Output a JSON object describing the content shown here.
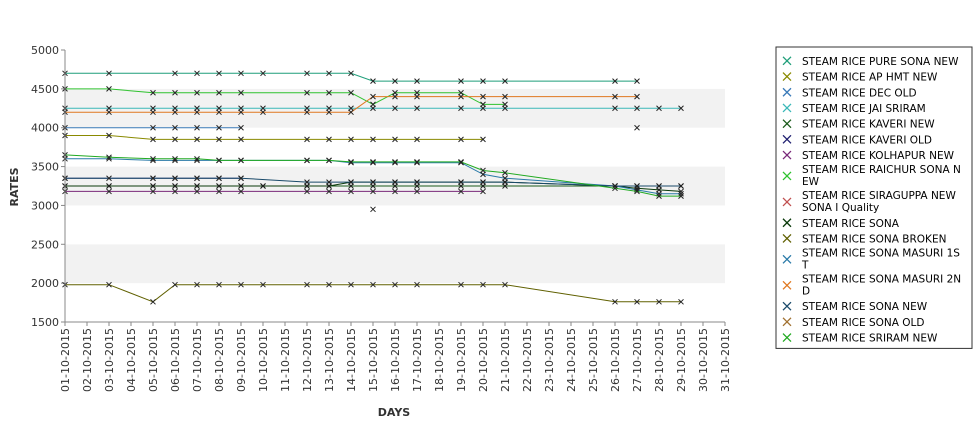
{
  "chart_data": {
    "type": "line",
    "xlabel": "DAYS",
    "ylabel": "RATES",
    "ylim": [
      1500,
      5000
    ],
    "yticks": [
      "1500",
      "2000",
      "2500",
      "3000",
      "3500",
      "4000",
      "4500",
      "5000"
    ],
    "categories": [
      "01-10-2015",
      "02-10-2015",
      "03-10-2015",
      "04-10-2015",
      "05-10-2015",
      "06-10-2015",
      "07-10-2015",
      "08-10-2015",
      "09-10-2015",
      "10-10-2015",
      "11-10-2015",
      "12-10-2015",
      "13-10-2015",
      "14-10-2015",
      "15-10-2015",
      "16-10-2015",
      "17-10-2015",
      "18-10-2015",
      "19-10-2015",
      "20-10-2015",
      "21-10-2015",
      "22-10-2015",
      "23-10-2015",
      "24-10-2015",
      "25-10-2015",
      "26-10-2015",
      "27-10-2015",
      "28-10-2015",
      "29-10-2015",
      "30-10-2015",
      "31-10-2015"
    ],
    "grid": "alternating horizontal bands",
    "legend_position": "right",
    "series": [
      {
        "name": " STEAM RICE PURE SONA NEW",
        "color": "#1f9e7a",
        "points": [
          [
            0,
            4700
          ],
          [
            2,
            4700
          ],
          [
            5,
            4700
          ],
          [
            6,
            4700
          ],
          [
            7,
            4700
          ],
          [
            8,
            4700
          ],
          [
            9,
            4700
          ],
          [
            11,
            4700
          ],
          [
            12,
            4700
          ],
          [
            13,
            4700
          ],
          [
            14,
            4600
          ],
          [
            15,
            4600
          ],
          [
            16,
            4600
          ],
          [
            18,
            4600
          ],
          [
            19,
            4600
          ],
          [
            20,
            4600
          ],
          [
            25,
            4600
          ],
          [
            26,
            4600
          ]
        ]
      },
      {
        "name": "STEAM RICE AP HMT NEW",
        "color": "#8a8a00",
        "points": [
          [
            0,
            3900
          ],
          [
            2,
            3900
          ],
          [
            4,
            3850
          ],
          [
            5,
            3850
          ],
          [
            6,
            3850
          ],
          [
            7,
            3850
          ],
          [
            8,
            3850
          ],
          [
            11,
            3850
          ],
          [
            12,
            3850
          ],
          [
            13,
            3850
          ],
          [
            14,
            3850
          ],
          [
            15,
            3850
          ],
          [
            16,
            3850
          ],
          [
            18,
            3850
          ],
          [
            19,
            3850
          ]
        ]
      },
      {
        "name": "STEAM RICE DEC OLD",
        "color": "#3a7ab8",
        "points": [
          [
            0,
            4000
          ],
          [
            4,
            4000
          ],
          [
            5,
            4000
          ],
          [
            6,
            4000
          ],
          [
            7,
            4000
          ],
          [
            8,
            4000
          ]
        ]
      },
      {
        "name": "STEAM RICE JAI SRIRAM",
        "color": "#3ab8b8",
        "points": [
          [
            0,
            4250
          ],
          [
            2,
            4250
          ],
          [
            4,
            4250
          ],
          [
            5,
            4250
          ],
          [
            6,
            4250
          ],
          [
            7,
            4250
          ],
          [
            8,
            4250
          ],
          [
            9,
            4250
          ],
          [
            11,
            4250
          ],
          [
            12,
            4250
          ],
          [
            13,
            4250
          ],
          [
            14,
            4250
          ],
          [
            15,
            4250
          ],
          [
            16,
            4250
          ],
          [
            18,
            4250
          ],
          [
            19,
            4250
          ],
          [
            20,
            4250
          ],
          [
            25,
            4250
          ],
          [
            26,
            4250
          ],
          [
            27,
            4250
          ],
          [
            28,
            4250
          ]
        ]
      },
      {
        "name": "STEAM RICE KAVERI NEW",
        "color": "#1a5a1a",
        "points": [
          [
            0,
            3250
          ],
          [
            2,
            3250
          ],
          [
            4,
            3250
          ],
          [
            5,
            3250
          ],
          [
            6,
            3250
          ],
          [
            7,
            3250
          ],
          [
            8,
            3250
          ],
          [
            9,
            3250
          ],
          [
            11,
            3250
          ],
          [
            12,
            3250
          ],
          [
            13,
            3250
          ],
          [
            14,
            3250
          ],
          [
            15,
            3250
          ],
          [
            16,
            3250
          ],
          [
            18,
            3250
          ],
          [
            19,
            3250
          ],
          [
            20,
            3250
          ],
          [
            25,
            3250
          ],
          [
            26,
            3250
          ],
          [
            27,
            3250
          ],
          [
            28,
            3250
          ]
        ]
      },
      {
        "name": "STEAM RICE KAVERI OLD",
        "color": "#202070",
        "points": [
          [
            0,
            3350
          ],
          [
            4,
            3350
          ],
          [
            5,
            3350
          ],
          [
            6,
            3350
          ],
          [
            7,
            3350
          ],
          [
            8,
            3350
          ]
        ]
      },
      {
        "name": "STEAM RICE KOLHAPUR NEW",
        "color": "#7a2a7a",
        "points": [
          [
            0,
            3180
          ],
          [
            2,
            3180
          ],
          [
            4,
            3180
          ],
          [
            5,
            3180
          ],
          [
            6,
            3180
          ],
          [
            7,
            3180
          ],
          [
            8,
            3180
          ],
          [
            11,
            3180
          ],
          [
            12,
            3180
          ],
          [
            13,
            3180
          ],
          [
            14,
            3180
          ],
          [
            15,
            3180
          ],
          [
            16,
            3180
          ],
          [
            18,
            3180
          ],
          [
            19,
            3180
          ]
        ]
      },
      {
        "name": "STEAM RICE RAICHUR SONA NEW",
        "color": "#2ec22e",
        "points": [
          [
            0,
            4500
          ],
          [
            2,
            4500
          ],
          [
            4,
            4450
          ],
          [
            5,
            4450
          ],
          [
            6,
            4450
          ],
          [
            7,
            4450
          ],
          [
            8,
            4450
          ],
          [
            11,
            4450
          ],
          [
            12,
            4450
          ],
          [
            13,
            4450
          ],
          [
            14,
            4300
          ],
          [
            15,
            4450
          ],
          [
            16,
            4450
          ],
          [
            18,
            4450
          ],
          [
            19,
            4300
          ],
          [
            20,
            4300
          ]
        ]
      },
      {
        "name": "STEAM RICE SIRAGUPPA NEW SONA I Quality",
        "color": "#c05050",
        "points": [
          [
            14,
            2950
          ]
        ]
      },
      {
        "name": "STEAM RICE SONA",
        "color": "#0a3a0a",
        "points": [
          [
            0,
            3250
          ],
          [
            2,
            3250
          ],
          [
            4,
            3250
          ],
          [
            5,
            3250
          ],
          [
            6,
            3250
          ],
          [
            7,
            3250
          ],
          [
            8,
            3250
          ],
          [
            9,
            3250
          ],
          [
            11,
            3250
          ],
          [
            12,
            3250
          ],
          [
            13,
            3300
          ],
          [
            14,
            3300
          ],
          [
            15,
            3300
          ],
          [
            16,
            3300
          ],
          [
            18,
            3300
          ],
          [
            19,
            3300
          ],
          [
            20,
            3300
          ],
          [
            25,
            3250
          ],
          [
            26,
            3220
          ],
          [
            27,
            3200
          ],
          [
            28,
            3180
          ]
        ]
      },
      {
        "name": "STEAM RICE SONA BROKEN",
        "color": "#606000",
        "points": [
          [
            0,
            1980
          ],
          [
            2,
            1980
          ],
          [
            4,
            1760
          ],
          [
            5,
            1980
          ],
          [
            6,
            1980
          ],
          [
            7,
            1980
          ],
          [
            8,
            1980
          ],
          [
            9,
            1980
          ],
          [
            11,
            1980
          ],
          [
            12,
            1980
          ],
          [
            13,
            1980
          ],
          [
            14,
            1980
          ],
          [
            15,
            1980
          ],
          [
            16,
            1980
          ],
          [
            18,
            1980
          ],
          [
            19,
            1980
          ],
          [
            20,
            1980
          ],
          [
            25,
            1760
          ],
          [
            26,
            1760
          ],
          [
            27,
            1760
          ],
          [
            28,
            1760
          ]
        ]
      },
      {
        "name": "STEAM RICE SONA MASURI 1ST",
        "color": "#2a7aa8",
        "points": [
          [
            0,
            3600
          ],
          [
            2,
            3600
          ],
          [
            4,
            3580
          ],
          [
            5,
            3580
          ],
          [
            6,
            3580
          ],
          [
            7,
            3580
          ],
          [
            8,
            3580
          ],
          [
            11,
            3580
          ],
          [
            12,
            3580
          ],
          [
            13,
            3550
          ],
          [
            14,
            3550
          ],
          [
            15,
            3550
          ],
          [
            16,
            3550
          ],
          [
            18,
            3550
          ],
          [
            19,
            3400
          ],
          [
            20,
            3350
          ],
          [
            25,
            3250
          ],
          [
            26,
            3200
          ],
          [
            27,
            3150
          ],
          [
            28,
            3150
          ]
        ]
      },
      {
        "name": "STEAM RICE SONA MASURI 2ND",
        "color": "#e07820",
        "points": [
          [
            0,
            4200
          ],
          [
            2,
            4200
          ],
          [
            4,
            4200
          ],
          [
            5,
            4200
          ],
          [
            6,
            4200
          ],
          [
            7,
            4200
          ],
          [
            8,
            4200
          ],
          [
            9,
            4200
          ],
          [
            11,
            4200
          ],
          [
            12,
            4200
          ],
          [
            13,
            4200
          ],
          [
            14,
            4400
          ],
          [
            15,
            4400
          ],
          [
            16,
            4400
          ],
          [
            18,
            4400
          ],
          [
            19,
            4400
          ],
          [
            20,
            4400
          ],
          [
            25,
            4400
          ],
          [
            26,
            4400
          ]
        ]
      },
      {
        "name": "STEAM RICE SONA NEW",
        "color": "#1a4a6a",
        "points": [
          [
            0,
            3350
          ],
          [
            2,
            3350
          ],
          [
            4,
            3350
          ],
          [
            5,
            3350
          ],
          [
            6,
            3350
          ],
          [
            7,
            3350
          ],
          [
            8,
            3350
          ],
          [
            11,
            3300
          ],
          [
            12,
            3300
          ],
          [
            13,
            3300
          ],
          [
            14,
            3300
          ],
          [
            15,
            3300
          ],
          [
            16,
            3300
          ],
          [
            18,
            3300
          ],
          [
            19,
            3300
          ],
          [
            20,
            3300
          ],
          [
            25,
            3250
          ],
          [
            26,
            3250
          ],
          [
            27,
            3250
          ],
          [
            28,
            3250
          ]
        ]
      },
      {
        "name": "STEAM RICE SONA OLD",
        "color": "#a07030",
        "points": [
          [
            26,
            4000
          ]
        ]
      },
      {
        "name": "STEAM RICE SRIRAM NEW",
        "color": "#22aa22",
        "points": [
          [
            0,
            3650
          ],
          [
            2,
            3620
          ],
          [
            4,
            3600
          ],
          [
            5,
            3600
          ],
          [
            6,
            3600
          ],
          [
            7,
            3580
          ],
          [
            8,
            3580
          ],
          [
            11,
            3580
          ],
          [
            12,
            3580
          ],
          [
            13,
            3560
          ],
          [
            14,
            3560
          ],
          [
            15,
            3560
          ],
          [
            16,
            3560
          ],
          [
            18,
            3560
          ],
          [
            19,
            3450
          ],
          [
            20,
            3420
          ],
          [
            25,
            3220
          ],
          [
            26,
            3180
          ],
          [
            27,
            3120
          ],
          [
            28,
            3120
          ]
        ]
      }
    ],
    "legend_rows": [
      {
        "lines": [
          " STEAM RICE PURE SONA NEW"
        ],
        "series": 0
      },
      {
        "lines": [
          "STEAM RICE AP HMT NEW"
        ],
        "series": 1
      },
      {
        "lines": [
          "STEAM RICE DEC OLD"
        ],
        "series": 2
      },
      {
        "lines": [
          "STEAM RICE JAI SRIRAM"
        ],
        "series": 3
      },
      {
        "lines": [
          "STEAM RICE KAVERI NEW"
        ],
        "series": 4
      },
      {
        "lines": [
          "STEAM RICE KAVERI OLD"
        ],
        "series": 5
      },
      {
        "lines": [
          "STEAM RICE KOLHAPUR NEW"
        ],
        "series": 6
      },
      {
        "lines": [
          "STEAM RICE RAICHUR SONA N",
          "EW"
        ],
        "series": 7
      },
      {
        "lines": [
          "STEAM RICE SIRAGUPPA NEW",
          "SONA I Quality"
        ],
        "series": 8
      },
      {
        "lines": [
          "STEAM RICE SONA"
        ],
        "series": 9
      },
      {
        "lines": [
          "STEAM RICE SONA BROKEN"
        ],
        "series": 10
      },
      {
        "lines": [
          "STEAM RICE SONA MASURI 1S",
          "T"
        ],
        "series": 11
      },
      {
        "lines": [
          "STEAM RICE SONA MASURI 2N",
          "D"
        ],
        "series": 12
      },
      {
        "lines": [
          "STEAM RICE SONA NEW"
        ],
        "series": 13
      },
      {
        "lines": [
          "STEAM RICE SONA OLD"
        ],
        "series": 14
      },
      {
        "lines": [
          "STEAM RICE SRIRAM NEW"
        ],
        "series": 15
      }
    ]
  }
}
